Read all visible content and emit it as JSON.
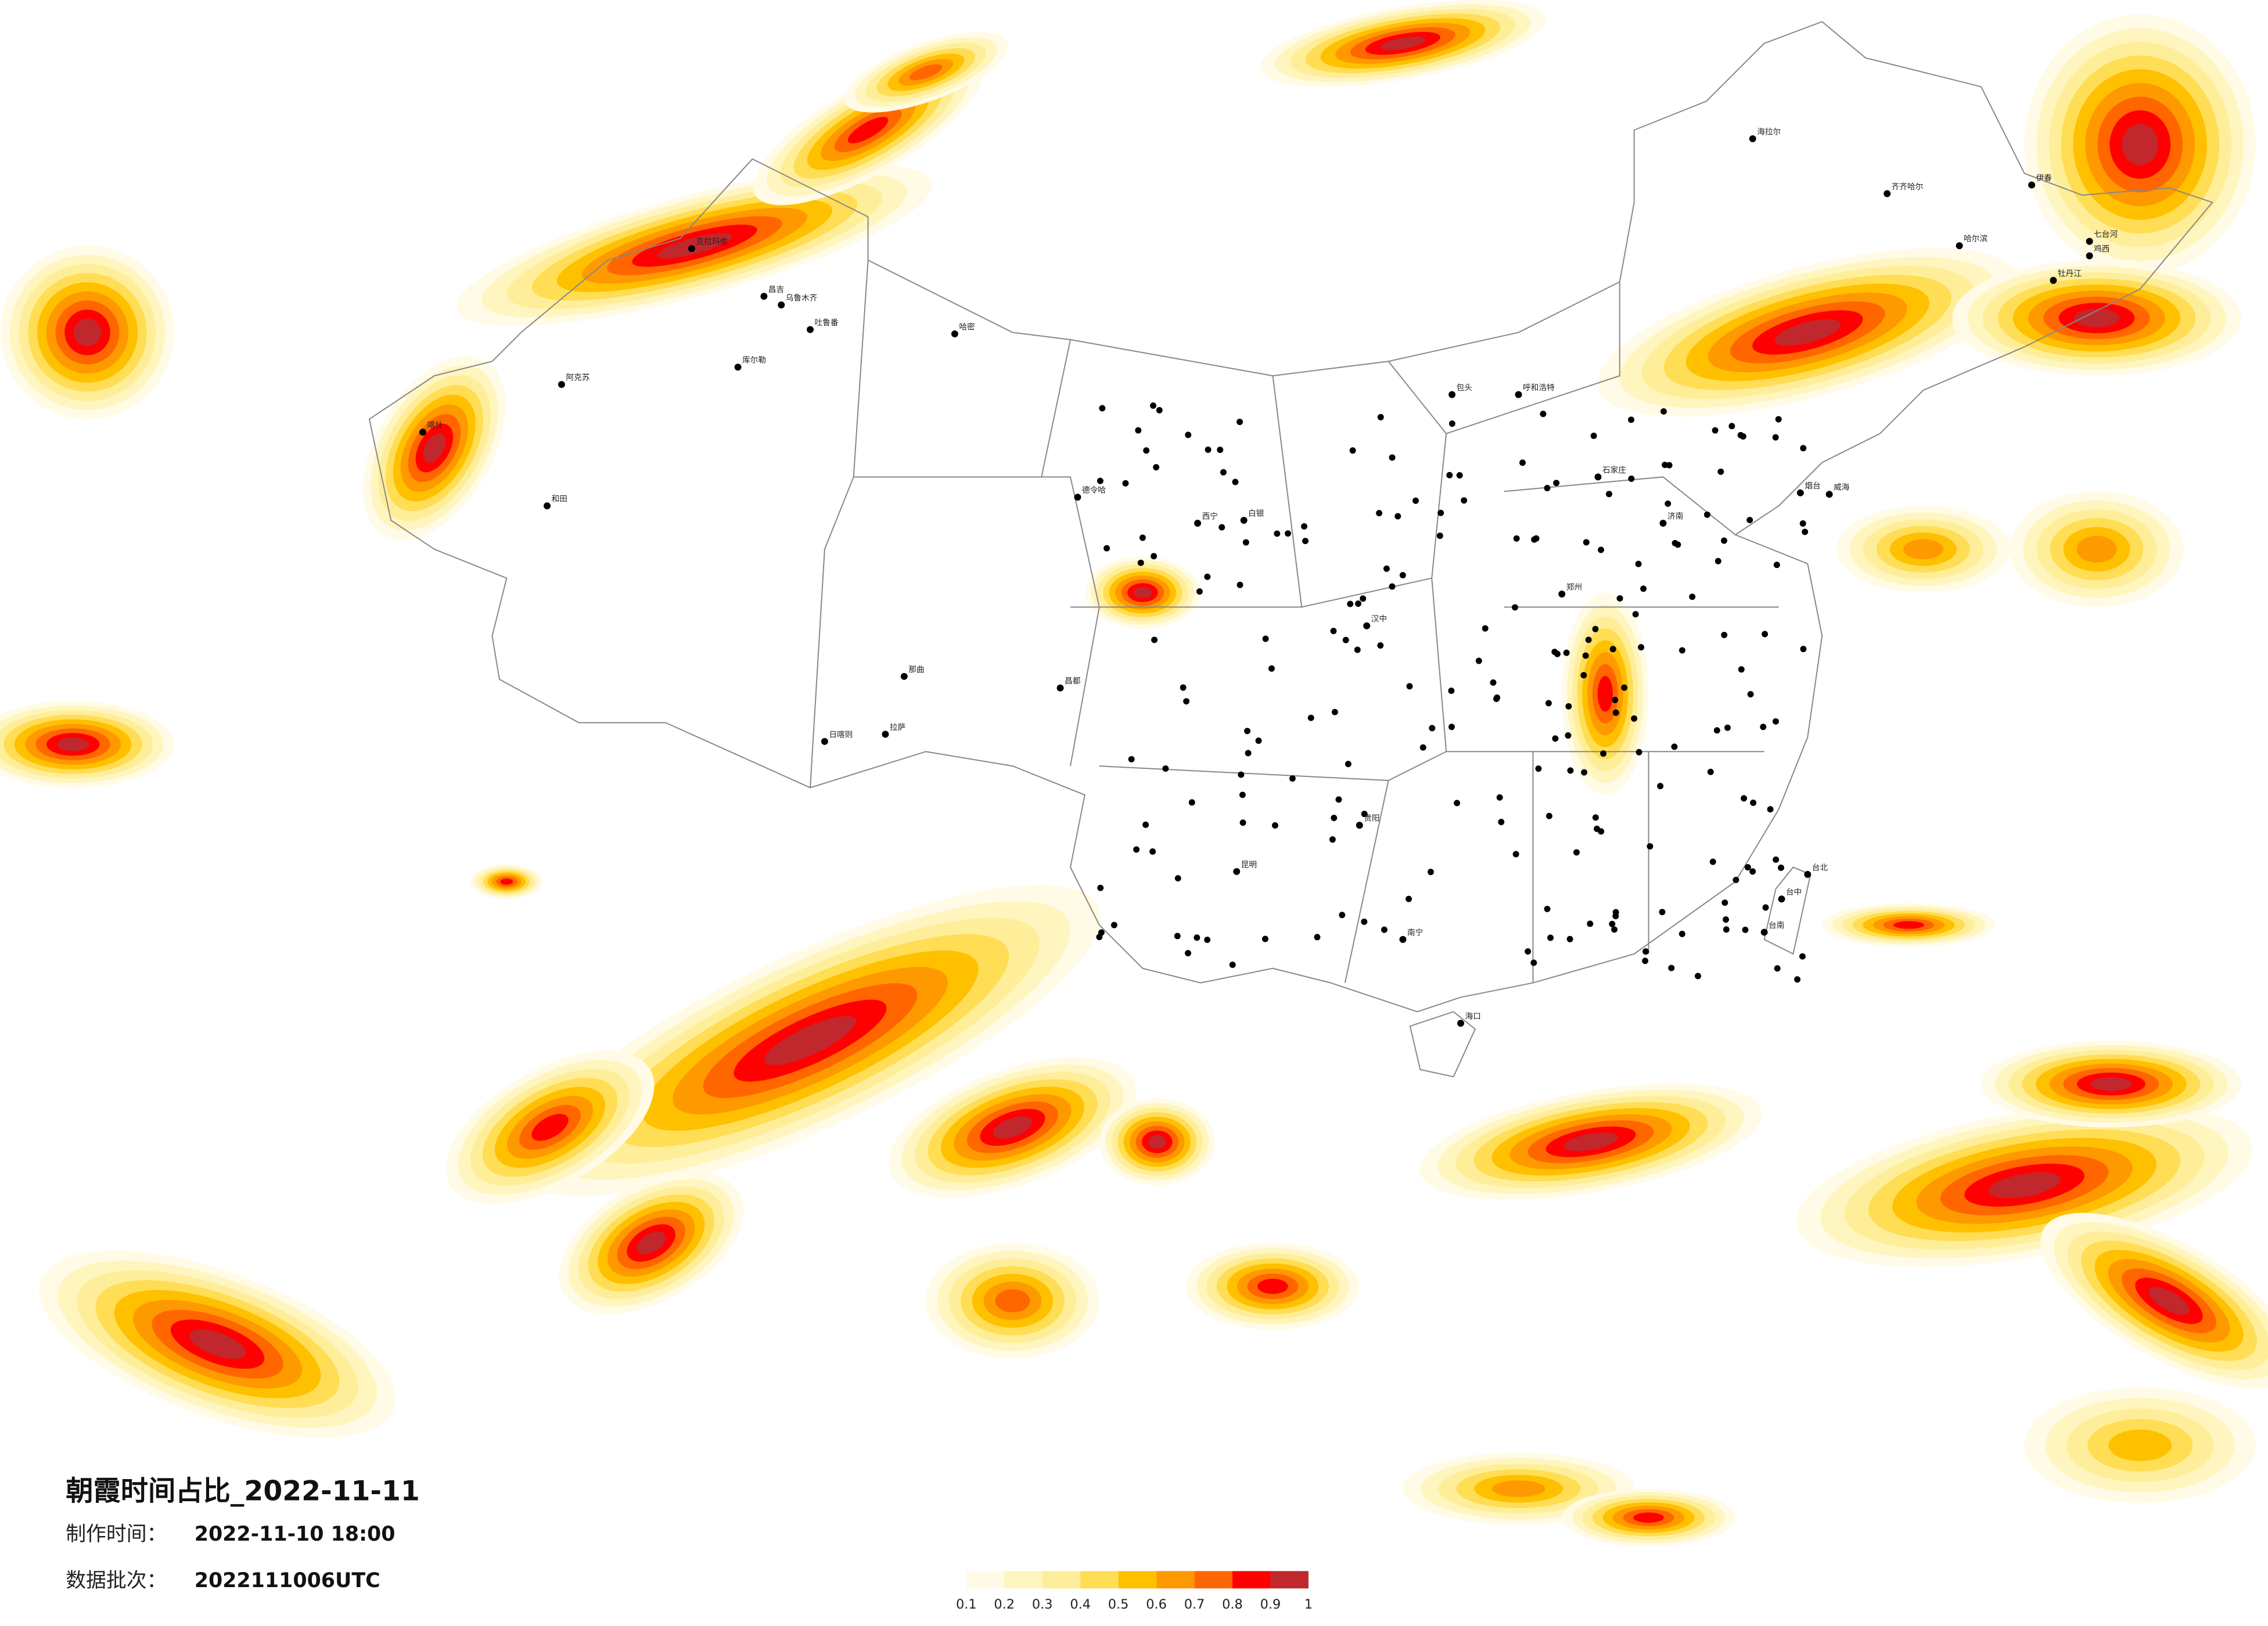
{
  "header": {
    "title": "朝霞时间占比_2022-11-11",
    "made_label": "制作时间：",
    "made_value": "2022-11-10 18:00",
    "batch_label": "数据批次：",
    "batch_value": "2022111006UTC"
  },
  "legend": {
    "ticks": [
      0.1,
      0.2,
      0.3,
      0.4,
      0.5,
      0.6,
      0.7,
      0.8,
      0.9,
      1
    ],
    "colors": [
      "#fffbe6",
      "#fff5bf",
      "#ffee99",
      "#ffdd55",
      "#ffc000",
      "#ff9900",
      "#ff6600",
      "#ff0000",
      "#c0282d"
    ]
  },
  "map": {
    "cities": [
      "克拉玛依",
      "昌吉",
      "乌鲁木齐",
      "吐鲁番",
      "哈密",
      "库尔勒",
      "阿克苏",
      "和田",
      "喀什",
      "日喀则",
      "拉萨",
      "那曲",
      "昌都",
      "德令哈",
      "西宁",
      "白银",
      "汉中",
      "海拉尔",
      "齐齐哈尔",
      "哈尔滨",
      "伊春",
      "七台河",
      "鸡西",
      "牡丹江",
      "呼和浩特",
      "包头",
      "石家庄",
      "济南",
      "郑州",
      "贵阳",
      "昆明",
      "南宁",
      "海口",
      "台北",
      "台中",
      "台南",
      "烟台",
      "威海"
    ]
  }
}
